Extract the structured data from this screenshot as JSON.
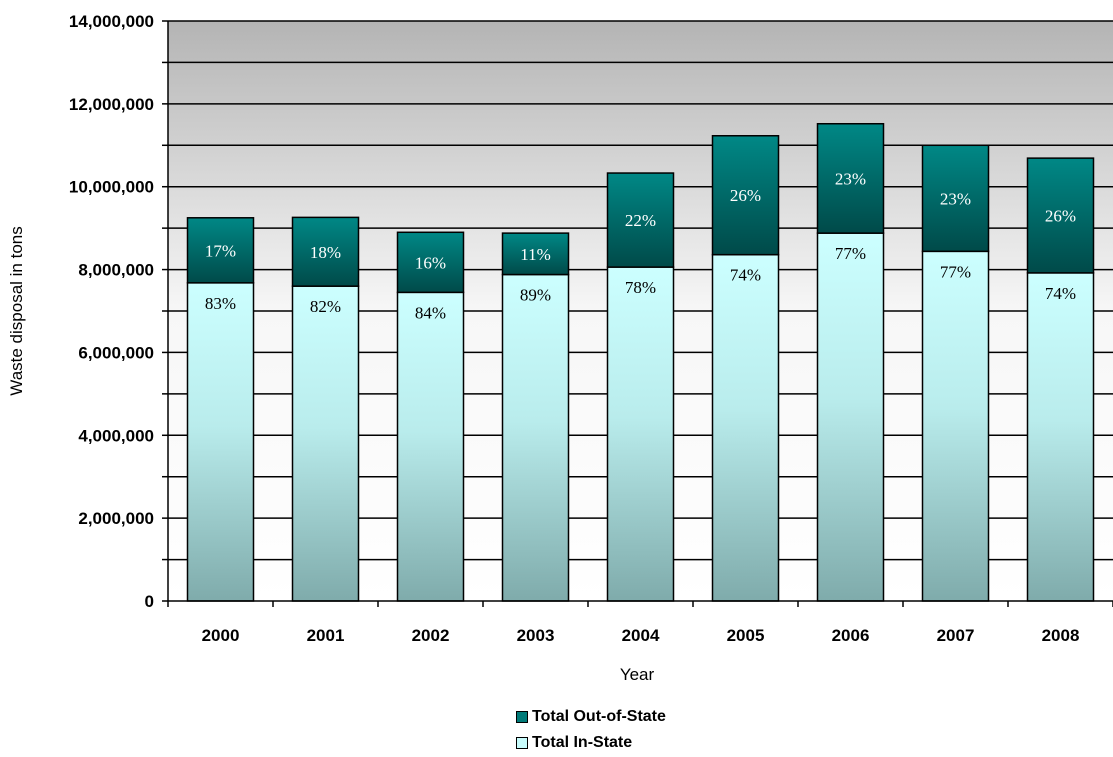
{
  "chart_data": {
    "type": "bar",
    "stacked": true,
    "title": "",
    "xlabel": "Year",
    "ylabel": "Waste disposal in tons",
    "ylim": [
      0,
      14000000
    ],
    "ytick_labels": [
      "0",
      "2,000,000",
      "4,000,000",
      "6,000,000",
      "8,000,000",
      "10,000,000",
      "12,000,000",
      "14,000,000"
    ],
    "categories": [
      "2000",
      "2001",
      "2002",
      "2003",
      "2004",
      "2005",
      "2006",
      "2007",
      "2008"
    ],
    "series": [
      {
        "name": "Total In-State",
        "color": "#c8fcfc",
        "values": [
          7680000,
          7600000,
          7450000,
          7880000,
          8060000,
          8360000,
          8880000,
          8440000,
          7920000
        ],
        "labels": [
          "83%",
          "82%",
          "84%",
          "89%",
          "78%",
          "74%",
          "77%",
          "77%",
          "74%"
        ]
      },
      {
        "name": "Total Out-of-State",
        "color": "#007a78",
        "values": [
          1570000,
          1660000,
          1450000,
          1000000,
          2270000,
          2870000,
          2640000,
          2560000,
          2770000
        ],
        "labels": [
          "17%",
          "18%",
          "16%",
          "11%",
          "22%",
          "26%",
          "23%",
          "23%",
          "26%"
        ]
      }
    ],
    "grid": true,
    "legend_position": "bottom"
  }
}
